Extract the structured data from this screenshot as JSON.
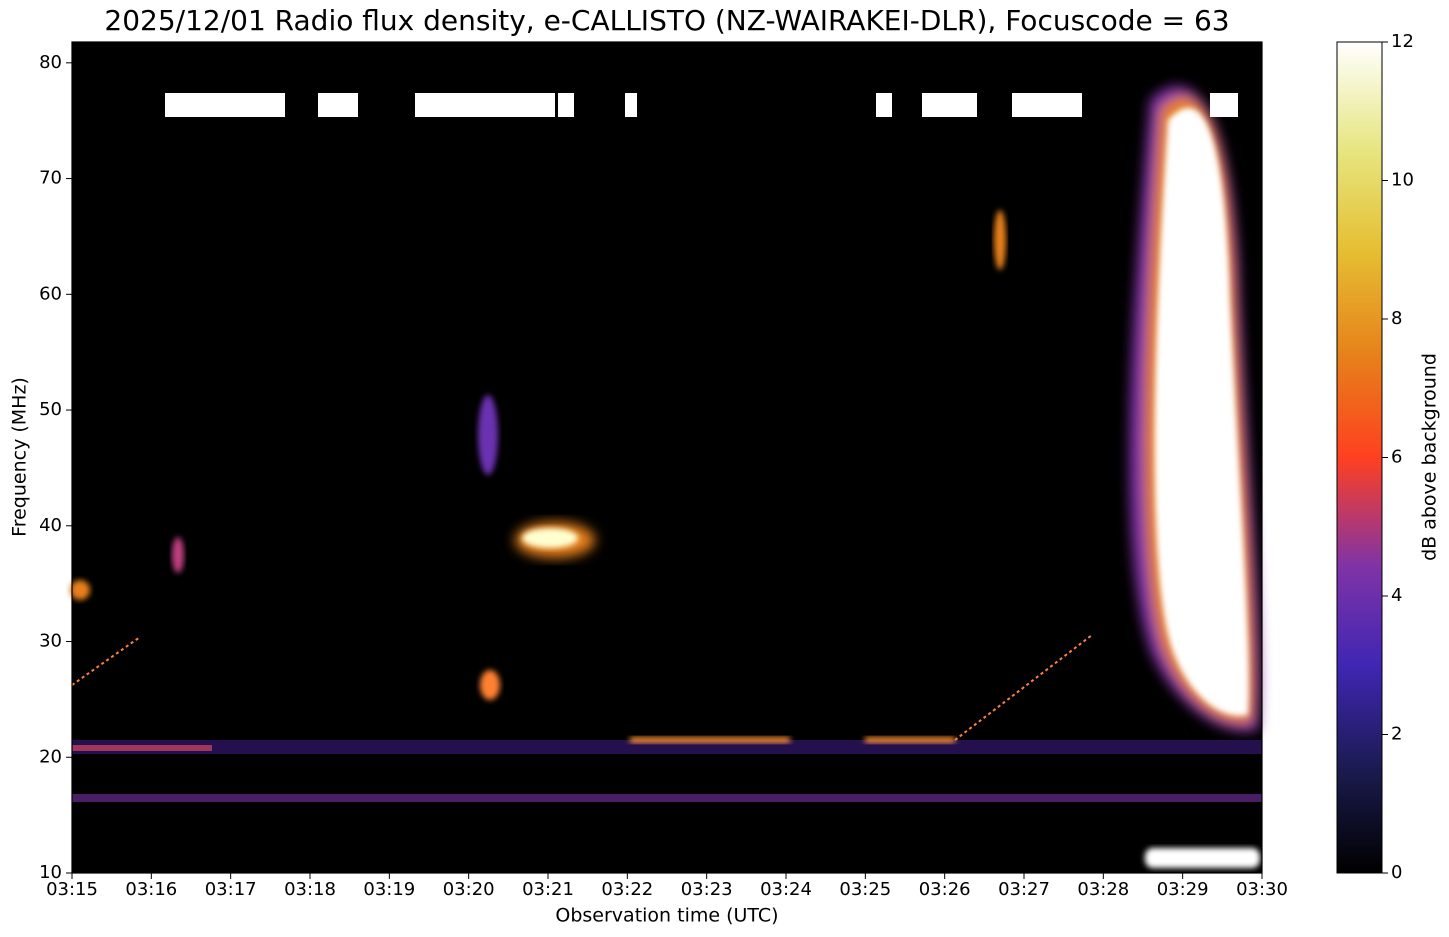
{
  "chart_data": {
    "type": "heatmap",
    "title": "2025/12/01 Radio flux density, e-CALLISTO (NZ-WAIRAKEI-DLR), Focuscode = 63",
    "xlabel": "Observation time (UTC)",
    "ylabel": "Frequency (MHz)",
    "xlim": [
      "03:15",
      "03:30"
    ],
    "xticks": [
      "03:15",
      "03:16",
      "03:17",
      "03:18",
      "03:19",
      "03:20",
      "03:21",
      "03:22",
      "03:23",
      "03:24",
      "03:25",
      "03:26",
      "03:27",
      "03:28",
      "03:29",
      "03:30"
    ],
    "ylim": [
      10,
      81.8
    ],
    "yticks": [
      10,
      20,
      30,
      40,
      50,
      60,
      70,
      80
    ],
    "colorbar": {
      "label": "dB above background",
      "lim": [
        0,
        12
      ],
      "ticks": [
        0,
        2,
        4,
        6,
        8,
        10,
        12
      ],
      "colormap": "CMRmap"
    }
  }
}
